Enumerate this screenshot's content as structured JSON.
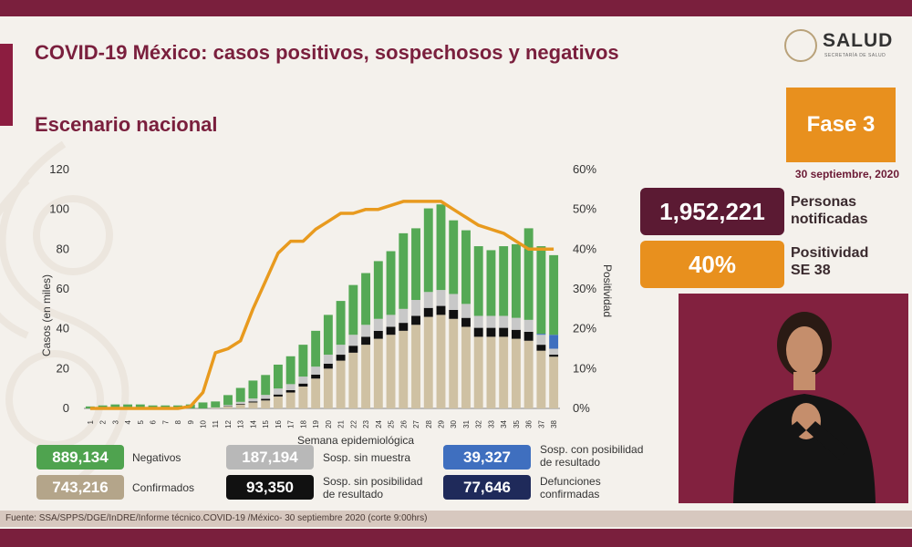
{
  "header": {
    "title": "COVID-19 México: casos positivos, sospechosos y negativos",
    "subtitle": "Escenario nacional",
    "logo_text": "SALUD",
    "logo_sub": "SECRETARÍA DE SALUD"
  },
  "side": {
    "phase": "Fase 3",
    "date": "30 septiembre, 2020",
    "notified_value": "1,952,221",
    "notified_label_1": "Personas",
    "notified_label_2": "notificadas",
    "positivity_value": "40%",
    "positivity_label_1": "Positividad",
    "positivity_label_2": "SE 38"
  },
  "totals": [
    {
      "value": "889,134",
      "label": "Negativos",
      "style": "background:#4fa34f;"
    },
    {
      "value": "743,216",
      "label": "Confirmados",
      "style": "background:#b4a58a;"
    },
    {
      "value": "187,194",
      "label": "Sosp. sin muestra",
      "style": "background:#b8b8b8;"
    },
    {
      "value": "93,350",
      "label_1": "Sosp. sin posibilidad",
      "label_2": "de resultado",
      "style": "background:#111111;"
    },
    {
      "value": "39,327",
      "label_1": "Sosp. con posibilidad",
      "label_2": "de resultado",
      "style": "background:#3f6fbf;"
    },
    {
      "value": "77,646",
      "label_1": "Defunciones",
      "label_2": "confirmadas",
      "style": "background:#1f2a5a;"
    }
  ],
  "footer": {
    "source": "Fuente: SSA/SPPS/DGE/InDRE/Informe técnico.COVID-19 /México- 30 septiembre 2020 (corte 9:00hrs)"
  },
  "colors": {
    "confirmados": "#cfc1a3",
    "sin_posibilidad": "#111111",
    "sin_muestra": "#c8c8c8",
    "con_posibilidad": "#3f6fbf",
    "negativos": "#55a955",
    "positividad": "#e89a1e"
  },
  "chart_data": {
    "type": "bar",
    "stacked": true,
    "xlabel": "Semana epidemiológica",
    "ylabel": "Casos (en miles)",
    "y2label": "Positividad",
    "ylim": [
      0,
      120
    ],
    "y2lim": [
      0,
      60
    ],
    "yticks": [
      0,
      20,
      40,
      60,
      80,
      100,
      120
    ],
    "y2ticks": [
      "0%",
      "10%",
      "20%",
      "30%",
      "40%",
      "50%",
      "60%"
    ],
    "categories": [
      "1",
      "2",
      "3",
      "4",
      "5",
      "6",
      "7",
      "8",
      "9",
      "10",
      "11",
      "12",
      "13",
      "14",
      "15",
      "16",
      "17",
      "18",
      "19",
      "20",
      "21",
      "22",
      "23",
      "24",
      "25",
      "26",
      "27",
      "28",
      "29",
      "30",
      "31",
      "32",
      "33",
      "34",
      "35",
      "36",
      "37",
      "38"
    ],
    "series": [
      {
        "name": "Confirmados",
        "key": "confirmados",
        "values": [
          0,
          0,
          0,
          0,
          0,
          0,
          0,
          0,
          0,
          0,
          0.3,
          1,
          2,
          3,
          4,
          6,
          8,
          11,
          15,
          20,
          24,
          28,
          32,
          35,
          37,
          39,
          42,
          46,
          47,
          45,
          41,
          36,
          36,
          36,
          35,
          34,
          29,
          26
        ]
      },
      {
        "name": "Sosp. sin posibilidad de resultado",
        "key": "sin_posibilidad",
        "values": [
          0,
          0,
          0,
          0,
          0,
          0,
          0,
          0,
          0,
          0,
          0,
          0.2,
          0.3,
          0.5,
          0.8,
          1,
          1.2,
          1.5,
          2,
          2.5,
          3,
          3.5,
          4,
          4,
          4,
          4,
          4.5,
          4.5,
          4.5,
          4.5,
          4.5,
          4.5,
          4.5,
          4.5,
          4.5,
          4.5,
          3,
          1
        ]
      },
      {
        "name": "Sosp. sin muestra",
        "key": "sin_muestra",
        "values": [
          0,
          0,
          0,
          0,
          0,
          0,
          0,
          0,
          0,
          0,
          0.2,
          0.5,
          1,
          1.5,
          2,
          3,
          3,
          3.5,
          4,
          4.5,
          5,
          5.5,
          6,
          6,
          6,
          7,
          8,
          8,
          8,
          8,
          7,
          6,
          6,
          6,
          6,
          6,
          5,
          3
        ]
      },
      {
        "name": "Sosp. con posibilidad de resultado",
        "key": "con_posibilidad",
        "values": [
          0,
          0,
          0,
          0,
          0,
          0,
          0,
          0,
          0,
          0,
          0,
          0,
          0,
          0,
          0,
          0,
          0,
          0,
          0,
          0,
          0,
          0,
          0,
          0,
          0,
          0,
          0,
          0,
          0,
          0,
          0,
          0,
          0,
          0,
          0,
          0,
          0.5,
          7
        ]
      },
      {
        "name": "Negativos",
        "key": "negativos",
        "values": [
          1,
          1.5,
          2,
          2,
          2,
          1.5,
          1.5,
          1.5,
          2,
          3,
          3,
          5,
          7,
          9,
          10,
          12,
          14,
          16,
          18,
          20,
          22,
          25,
          26,
          29,
          32,
          38,
          36,
          42,
          43,
          37,
          37,
          35,
          33,
          35,
          37,
          46,
          44,
          40
        ]
      }
    ],
    "line": {
      "name": "Positividad",
      "values": [
        0,
        0,
        0,
        0,
        0,
        0,
        0,
        0,
        0.5,
        4,
        14,
        15,
        17,
        25,
        32,
        39,
        42,
        42,
        45,
        47,
        49,
        49,
        50,
        50,
        51,
        52,
        52,
        52,
        52,
        50,
        48,
        46,
        45,
        44,
        42,
        40,
        40,
        40
      ]
    }
  }
}
